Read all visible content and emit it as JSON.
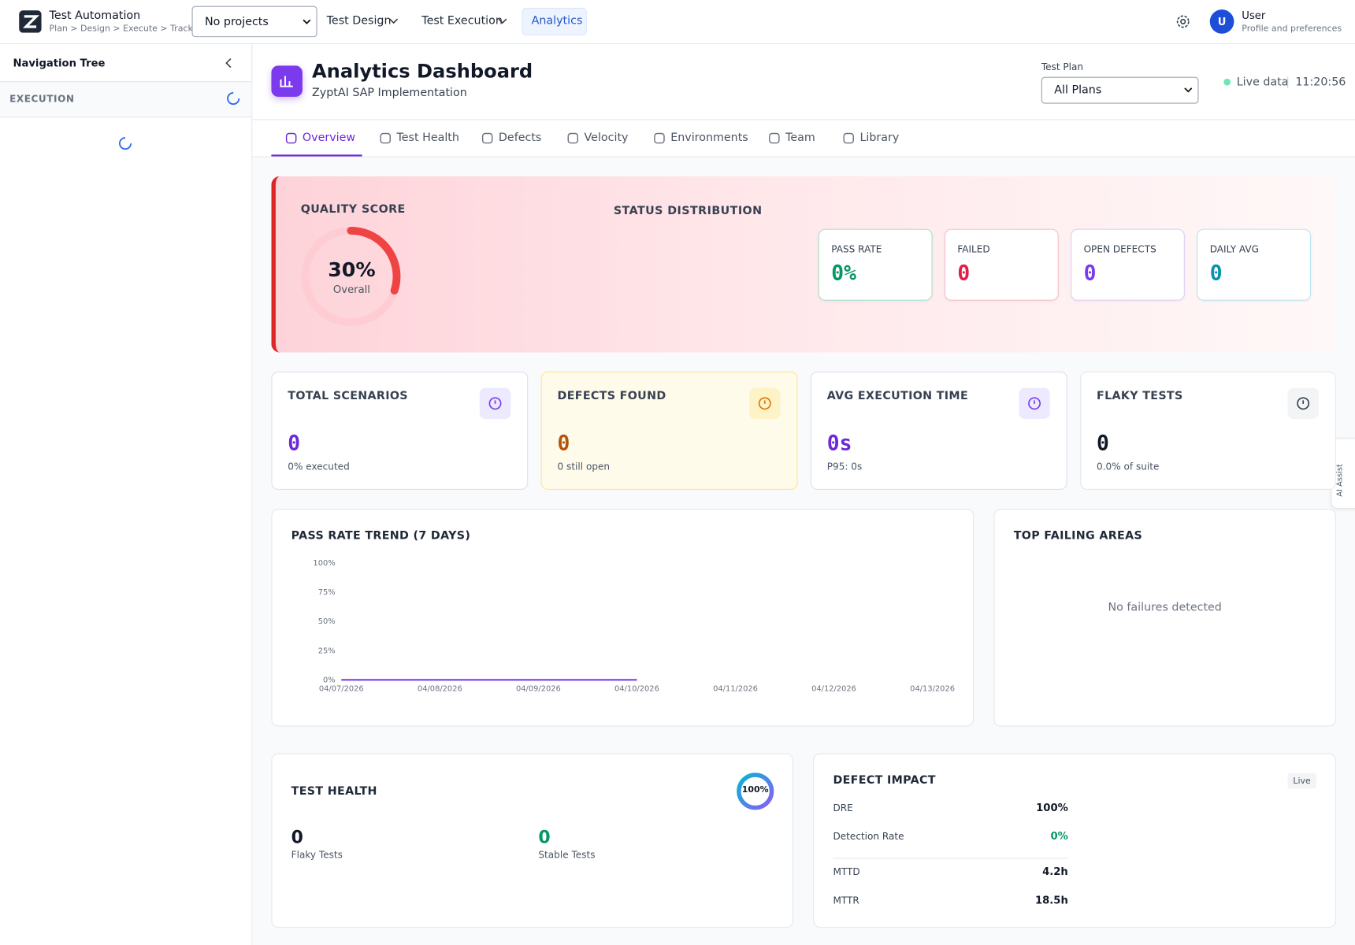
{
  "header": {
    "app_title": "Test Automation",
    "app_subtitle": "Plan > Design > Execute > Track",
    "project_select": "No projects",
    "nav": [
      "Test Design",
      "Test Execution",
      "Analytics"
    ],
    "avatar": "U",
    "user_name": "User",
    "user_sub": "Profile and preferences"
  },
  "sidebar": {
    "title": "Navigation Tree",
    "section": "EXECUTION"
  },
  "page": {
    "title": "Analytics Dashboard",
    "subtitle": "ZyptAI SAP Implementation",
    "plan_label": "Test Plan",
    "plan_select": "All Plans",
    "live": "Live data",
    "separator": "|",
    "time": "11:20:56"
  },
  "tabs": [
    "Overview",
    "Test Health",
    "Defects",
    "Velocity",
    "Environments",
    "Team",
    "Library"
  ],
  "quality": {
    "label": "QUALITY SCORE",
    "score": 30,
    "score_label": "30%",
    "sub": "Overall",
    "status_title": "STATUS DISTRIBUTION",
    "kpis": [
      {
        "label": "PASS RATE",
        "value": "0%"
      },
      {
        "label": "FAILED",
        "value": "0"
      },
      {
        "label": "OPEN DEFECTS",
        "value": "0"
      },
      {
        "label": "DAILY AVG",
        "value": "0"
      }
    ]
  },
  "stats": [
    {
      "label": "TOTAL SCENARIOS",
      "value": "0",
      "sub": "0% executed"
    },
    {
      "label": "DEFECTS FOUND",
      "value": "0",
      "sub": "0 still open"
    },
    {
      "label": "AVG EXECUTION TIME",
      "value": "0s",
      "sub": "P95: 0s"
    },
    {
      "label": "FLAKY TESTS",
      "value": "0",
      "sub": "0.0% of suite"
    }
  ],
  "chart_data": {
    "type": "line",
    "title": "PASS RATE TREND (7 DAYS)",
    "x": [
      "04/07/2026",
      "04/08/2026",
      "04/09/2026",
      "04/10/2026",
      "04/11/2026",
      "04/12/2026",
      "04/13/2026"
    ],
    "values": [
      0,
      0,
      0,
      0,
      null,
      null,
      null
    ],
    "color": "#7c3aed",
    "ylim": [
      0,
      100
    ],
    "yticks": [
      {
        "value": 0,
        "label": "0%"
      },
      {
        "value": 25,
        "label": "25%"
      },
      {
        "value": 50,
        "label": "50%"
      },
      {
        "value": 75,
        "label": "75%"
      },
      {
        "value": 100,
        "label": "100%"
      }
    ]
  },
  "failing": {
    "title": "TOP FAILING AREAS",
    "empty": "No failures detected"
  },
  "health": {
    "title": "TEST HEALTH",
    "ring": "100%",
    "flaky_value": "0",
    "flaky_label": "Flaky Tests",
    "stable_value": "0",
    "stable_label": "Stable Tests"
  },
  "impact": {
    "title": "DEFECT IMPACT",
    "badge": "Live",
    "rows": [
      [
        "DRE",
        "100%"
      ],
      [
        "Detection Rate",
        "0%"
      ],
      [
        "MTTD",
        "4.2h"
      ],
      [
        "MTTR",
        "18.5h"
      ]
    ]
  },
  "assist": "AI Assist"
}
